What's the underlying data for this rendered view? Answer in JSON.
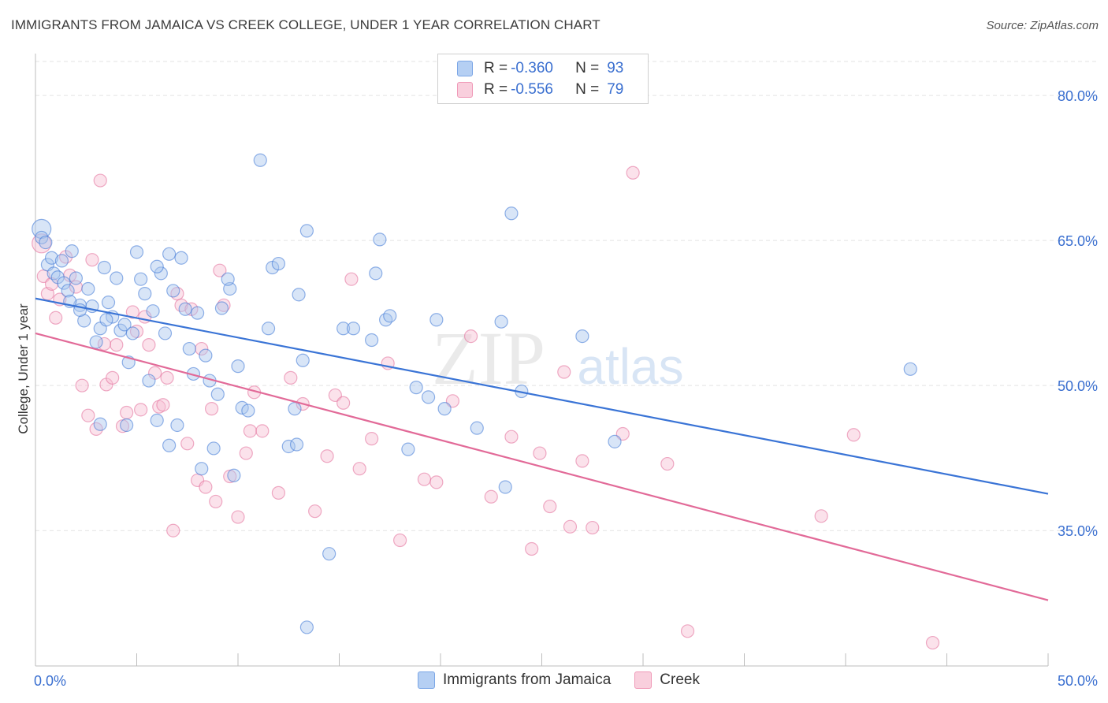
{
  "title": "IMMIGRANTS FROM JAMAICA VS CREEK COLLEGE, UNDER 1 YEAR CORRELATION CHART",
  "source": "Source: ZipAtlas.com",
  "watermark": {
    "zip": "ZIP",
    "atlas": "atlas"
  },
  "legend": {
    "rows": [
      {
        "r_label": "R =",
        "r_value": "-0.360",
        "n_label": "N =",
        "n_value": "93",
        "color": "#7ba6e6"
      },
      {
        "r_label": "R =",
        "r_value": "-0.556",
        "n_label": "N =",
        "n_value": "79",
        "color": "#f09ab8"
      }
    ]
  },
  "bottom_legend": [
    {
      "label": "Immigrants from Jamaica",
      "color": "#7ba6e6"
    },
    {
      "label": "Creek",
      "color": "#f09ab8"
    }
  ],
  "chart_data": {
    "type": "scatter",
    "title": "IMMIGRANTS FROM JAMAICA VS CREEK COLLEGE, UNDER 1 YEAR CORRELATION CHART",
    "xlabel": "",
    "ylabel": "College, Under 1 year",
    "xlim": [
      0,
      50
    ],
    "ylim": [
      21,
      84
    ],
    "x_tick_labels": [
      "0.0%",
      "50.0%"
    ],
    "y_ticks": [
      35,
      50,
      65,
      80
    ],
    "y_tick_labels": [
      "35.0%",
      "50.0%",
      "65.0%",
      "80.0%"
    ],
    "grid": true,
    "colors": {
      "jamaica": "#3a74d6",
      "jamaica_fill": "#a9c6ee",
      "creek": "#e26a98",
      "creek_fill": "#f6bfd2",
      "axis_text": "#3a6fd0"
    },
    "series": [
      {
        "name": "Immigrants from Jamaica",
        "trend": {
          "x": [
            0,
            50
          ],
          "y": [
            59.0,
            38.8
          ]
        },
        "points": [
          [
            0.3,
            66.2
          ],
          [
            0.3,
            65.3
          ],
          [
            0.5,
            64.8
          ],
          [
            0.6,
            62.5
          ],
          [
            0.8,
            63.2
          ],
          [
            0.9,
            61.6
          ],
          [
            1.1,
            61.2
          ],
          [
            1.3,
            62.9
          ],
          [
            1.4,
            60.6
          ],
          [
            1.6,
            59.8
          ],
          [
            1.8,
            63.9
          ],
          [
            2.0,
            61.1
          ],
          [
            2.2,
            58.3
          ],
          [
            2.4,
            56.7
          ],
          [
            2.6,
            60.0
          ],
          [
            2.8,
            58.2
          ],
          [
            3.0,
            54.5
          ],
          [
            3.2,
            55.9
          ],
          [
            3.4,
            62.2
          ],
          [
            3.6,
            58.6
          ],
          [
            3.8,
            57.1
          ],
          [
            4.0,
            61.1
          ],
          [
            4.2,
            55.7
          ],
          [
            4.4,
            56.3
          ],
          [
            4.6,
            52.4
          ],
          [
            4.8,
            55.4
          ],
          [
            5.0,
            63.8
          ],
          [
            5.2,
            61.0
          ],
          [
            5.4,
            59.5
          ],
          [
            5.6,
            50.5
          ],
          [
            5.8,
            57.7
          ],
          [
            6.0,
            46.4
          ],
          [
            6.2,
            61.6
          ],
          [
            6.4,
            55.4
          ],
          [
            6.6,
            63.6
          ],
          [
            6.8,
            59.8
          ],
          [
            7.0,
            45.9
          ],
          [
            7.2,
            63.2
          ],
          [
            7.4,
            57.9
          ],
          [
            7.6,
            53.8
          ],
          [
            7.8,
            51.2
          ],
          [
            8.0,
            57.5
          ],
          [
            8.2,
            41.4
          ],
          [
            8.4,
            53.1
          ],
          [
            8.6,
            50.5
          ],
          [
            8.8,
            43.5
          ],
          [
            9.0,
            49.1
          ],
          [
            9.2,
            58.0
          ],
          [
            9.6,
            60.0
          ],
          [
            9.8,
            40.7
          ],
          [
            10.0,
            52.0
          ],
          [
            10.2,
            47.7
          ],
          [
            11.1,
            73.3
          ],
          [
            11.5,
            55.9
          ],
          [
            11.7,
            62.2
          ],
          [
            12.0,
            62.6
          ],
          [
            12.5,
            43.7
          ],
          [
            12.8,
            47.6
          ],
          [
            13.0,
            59.4
          ],
          [
            13.2,
            52.6
          ],
          [
            13.4,
            66.0
          ],
          [
            15.2,
            55.9
          ],
          [
            15.7,
            55.9
          ],
          [
            16.6,
            54.7
          ],
          [
            16.8,
            61.6
          ],
          [
            17.0,
            65.1
          ],
          [
            17.3,
            56.8
          ],
          [
            17.5,
            57.2
          ],
          [
            18.4,
            43.4
          ],
          [
            18.8,
            49.8
          ],
          [
            19.4,
            48.8
          ],
          [
            19.8,
            56.8
          ],
          [
            20.2,
            47.6
          ],
          [
            21.8,
            45.6
          ],
          [
            23.0,
            56.6
          ],
          [
            23.2,
            39.5
          ],
          [
            23.5,
            67.8
          ],
          [
            24.0,
            49.4
          ],
          [
            27.0,
            55.1
          ],
          [
            28.6,
            44.2
          ],
          [
            43.2,
            51.7
          ],
          [
            12.9,
            43.9
          ],
          [
            10.5,
            47.4
          ],
          [
            4.5,
            45.9
          ],
          [
            6.6,
            43.8
          ],
          [
            3.5,
            56.8
          ],
          [
            2.2,
            57.8
          ],
          [
            1.7,
            58.7
          ],
          [
            6.0,
            62.3
          ],
          [
            9.5,
            61.0
          ],
          [
            3.2,
            46.0
          ],
          [
            14.5,
            32.6
          ],
          [
            13.4,
            25.0
          ]
        ]
      },
      {
        "name": "Creek",
        "trend": {
          "x": [
            0,
            50
          ],
          "y": [
            55.4,
            27.8
          ]
        },
        "points": [
          [
            0.3,
            64.7
          ],
          [
            0.4,
            61.3
          ],
          [
            0.6,
            59.5
          ],
          [
            0.8,
            60.5
          ],
          [
            1.0,
            57.0
          ],
          [
            1.2,
            58.9
          ],
          [
            1.5,
            63.3
          ],
          [
            1.7,
            61.4
          ],
          [
            2.0,
            60.2
          ],
          [
            2.3,
            50.0
          ],
          [
            2.6,
            46.9
          ],
          [
            2.8,
            63.0
          ],
          [
            3.0,
            45.5
          ],
          [
            3.2,
            71.2
          ],
          [
            3.5,
            50.1
          ],
          [
            3.8,
            50.8
          ],
          [
            4.0,
            54.2
          ],
          [
            4.3,
            45.8
          ],
          [
            4.5,
            47.2
          ],
          [
            4.8,
            57.6
          ],
          [
            5.0,
            55.6
          ],
          [
            5.2,
            47.5
          ],
          [
            5.4,
            57.1
          ],
          [
            5.6,
            54.2
          ],
          [
            5.9,
            51.3
          ],
          [
            6.1,
            47.8
          ],
          [
            6.3,
            48.0
          ],
          [
            6.5,
            50.8
          ],
          [
            6.8,
            35.0
          ],
          [
            7.0,
            59.5
          ],
          [
            7.2,
            58.3
          ],
          [
            7.5,
            44.0
          ],
          [
            7.7,
            57.9
          ],
          [
            8.0,
            40.2
          ],
          [
            8.2,
            53.8
          ],
          [
            8.4,
            39.5
          ],
          [
            8.7,
            47.6
          ],
          [
            8.9,
            38.0
          ],
          [
            9.1,
            61.9
          ],
          [
            9.3,
            58.3
          ],
          [
            9.6,
            40.6
          ],
          [
            10.0,
            36.4
          ],
          [
            10.4,
            43.0
          ],
          [
            10.6,
            45.3
          ],
          [
            10.8,
            49.3
          ],
          [
            11.2,
            45.3
          ],
          [
            12.0,
            38.9
          ],
          [
            12.6,
            50.8
          ],
          [
            13.2,
            48.1
          ],
          [
            13.8,
            37.0
          ],
          [
            14.4,
            42.7
          ],
          [
            14.8,
            49.0
          ],
          [
            15.2,
            48.2
          ],
          [
            15.6,
            61.0
          ],
          [
            16.0,
            41.4
          ],
          [
            16.6,
            44.5
          ],
          [
            17.4,
            52.3
          ],
          [
            18.0,
            34.0
          ],
          [
            19.2,
            40.3
          ],
          [
            19.8,
            40.0
          ],
          [
            20.6,
            48.4
          ],
          [
            21.5,
            55.1
          ],
          [
            22.5,
            38.5
          ],
          [
            23.5,
            44.7
          ],
          [
            24.5,
            33.1
          ],
          [
            24.9,
            43.0
          ],
          [
            25.4,
            37.5
          ],
          [
            26.1,
            51.4
          ],
          [
            26.4,
            35.4
          ],
          [
            27.0,
            42.2
          ],
          [
            27.5,
            35.3
          ],
          [
            29.0,
            45.0
          ],
          [
            29.5,
            72.0
          ],
          [
            31.2,
            41.9
          ],
          [
            32.2,
            24.6
          ],
          [
            38.8,
            36.5
          ],
          [
            40.4,
            44.9
          ],
          [
            44.3,
            23.4
          ],
          [
            3.4,
            54.3
          ]
        ]
      }
    ]
  }
}
